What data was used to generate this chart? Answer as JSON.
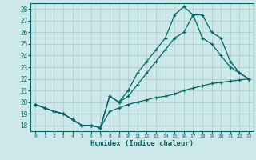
{
  "bg_color": "#cce8e8",
  "grid_color": "#aacccc",
  "line_color": "#006666",
  "xlabel": "Humidex (Indice chaleur)",
  "xlim": [
    -0.5,
    23.5
  ],
  "ylim": [
    17.5,
    28.5
  ],
  "xticks": [
    0,
    1,
    2,
    3,
    4,
    5,
    6,
    7,
    8,
    9,
    10,
    11,
    12,
    13,
    14,
    15,
    16,
    17,
    18,
    19,
    20,
    21,
    22,
    23
  ],
  "yticks": [
    18,
    19,
    20,
    21,
    22,
    23,
    24,
    25,
    26,
    27,
    28
  ],
  "series": [
    {
      "x": [
        0,
        1,
        2,
        3,
        4,
        5,
        6,
        7,
        8,
        9,
        10,
        11,
        12,
        13,
        14,
        15,
        16,
        17,
        18,
        19,
        20,
        21,
        22,
        23
      ],
      "y": [
        19.8,
        19.5,
        19.2,
        19.0,
        18.5,
        18.0,
        18.0,
        17.8,
        19.2,
        19.5,
        19.8,
        20.0,
        20.2,
        20.4,
        20.5,
        20.7,
        21.0,
        21.2,
        21.4,
        21.6,
        21.7,
        21.8,
        21.9,
        22.0
      ]
    },
    {
      "x": [
        0,
        1,
        2,
        3,
        4,
        5,
        6,
        7,
        8,
        9,
        10,
        11,
        12,
        13,
        14,
        15,
        16,
        17,
        18,
        19,
        20,
        21,
        22,
        23
      ],
      "y": [
        19.8,
        19.5,
        19.2,
        19.0,
        18.5,
        18.0,
        18.0,
        17.8,
        20.5,
        20.0,
        20.5,
        21.5,
        22.5,
        23.5,
        24.5,
        25.5,
        26.0,
        27.5,
        25.5,
        25.0,
        24.0,
        23.0,
        22.5,
        22.0
      ]
    },
    {
      "x": [
        0,
        1,
        2,
        3,
        4,
        5,
        6,
        7,
        8,
        9,
        10,
        11,
        12,
        13,
        14,
        15,
        16,
        17,
        18,
        19,
        20,
        21,
        22,
        23
      ],
      "y": [
        19.8,
        19.5,
        19.2,
        19.0,
        18.5,
        18.0,
        18.0,
        17.8,
        20.5,
        20.0,
        21.0,
        22.5,
        23.5,
        24.5,
        25.5,
        27.5,
        28.2,
        27.5,
        27.5,
        26.0,
        25.5,
        23.5,
        22.5,
        22.0
      ]
    }
  ]
}
